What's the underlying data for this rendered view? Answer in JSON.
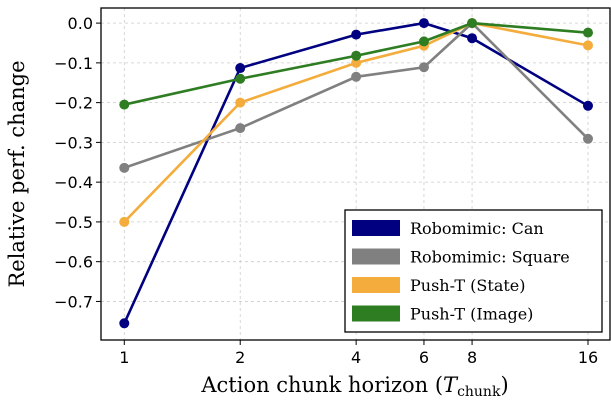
{
  "chart_data": {
    "type": "line",
    "title": "",
    "xlabel": "Action chunk horizon (",
    "xlabel_math": "T",
    "xlabel_sub": "chunk",
    "xlabel_close": ")",
    "ylabel": "Relative perf. change",
    "x_scale": "log2",
    "x": [
      1,
      2,
      4,
      6,
      8,
      16
    ],
    "x_tick_labels": [
      "1",
      "2",
      "4",
      "6",
      "8",
      "16"
    ],
    "xlim": [
      0.87,
      18.25
    ],
    "ylim": [
      -0.797,
      0.038
    ],
    "y_ticks": [
      0.0,
      -0.1,
      -0.2,
      -0.3,
      -0.4,
      -0.5,
      -0.6,
      -0.7
    ],
    "y_tick_labels": [
      "0.0",
      "−0.1",
      "−0.2",
      "−0.3",
      "−0.4",
      "−0.5",
      "−0.6",
      "−0.7"
    ],
    "grid": true,
    "legend_placement": "lower-right",
    "series": [
      {
        "name": "Robomimic: Can",
        "color": "#000080",
        "values": [
          -0.755,
          -0.113,
          -0.029,
          0.0,
          -0.038,
          -0.208
        ]
      },
      {
        "name": "Robomimic: Square",
        "color": "#808080",
        "values": [
          -0.364,
          -0.264,
          -0.135,
          -0.111,
          0.0,
          -0.291
        ]
      },
      {
        "name": "Push-T (State)",
        "color": "#f4ac3c",
        "values": [
          -0.5,
          -0.2,
          -0.1,
          -0.057,
          0.0,
          -0.056
        ]
      },
      {
        "name": "Push-T (Image)",
        "color": "#2e7d22",
        "values": [
          -0.205,
          -0.14,
          -0.082,
          -0.046,
          0.0,
          -0.024
        ]
      }
    ]
  }
}
